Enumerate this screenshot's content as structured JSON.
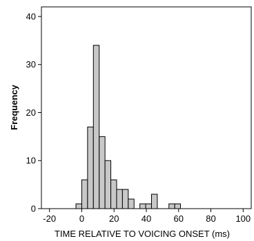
{
  "chart_data": {
    "type": "bar",
    "title": "",
    "xlabel": "TIME RELATIVE TO VOICING ONSET (ms)",
    "ylabel": "Frequency",
    "xlim": [
      -25,
      105
    ],
    "ylim": [
      0,
      42
    ],
    "xticks": [
      -20,
      0,
      20,
      40,
      60,
      80,
      100
    ],
    "yticks": [
      0,
      10,
      20,
      30,
      40
    ],
    "xtick_labels": [
      "-20",
      "0",
      "20",
      "40",
      "60",
      "80",
      "100"
    ],
    "ytick_labels": [
      "0",
      "10",
      "20",
      "30",
      "40"
    ],
    "bin_width": 3.6,
    "bins": [
      {
        "start": -3.6,
        "value": 1
      },
      {
        "start": 0.0,
        "value": 6
      },
      {
        "start": 3.6,
        "value": 17
      },
      {
        "start": 7.2,
        "value": 34
      },
      {
        "start": 10.8,
        "value": 15
      },
      {
        "start": 14.4,
        "value": 10
      },
      {
        "start": 18.0,
        "value": 6
      },
      {
        "start": 21.6,
        "value": 4
      },
      {
        "start": 25.2,
        "value": 4
      },
      {
        "start": 28.8,
        "value": 2
      },
      {
        "start": 32.4,
        "value": 0
      },
      {
        "start": 36.0,
        "value": 1
      },
      {
        "start": 39.6,
        "value": 1
      },
      {
        "start": 43.2,
        "value": 3
      },
      {
        "start": 46.8,
        "value": 0
      },
      {
        "start": 50.4,
        "value": 0
      },
      {
        "start": 54.0,
        "value": 1
      },
      {
        "start": 57.6,
        "value": 1
      }
    ],
    "grid": false,
    "bar_color": "#c8c8c8",
    "edge_color": "#000000"
  }
}
